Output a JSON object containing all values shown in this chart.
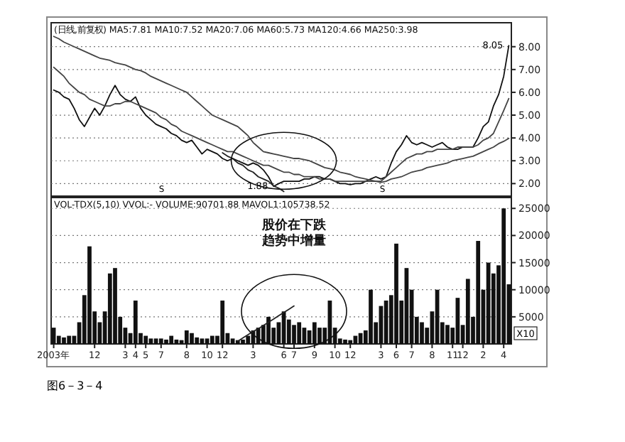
{
  "chart_data": [
    {
      "type": "line",
      "title": "(日线,前复权) MA5:7.81 MA10:7.52 MA20:7.06 MA60:5.73 MA120:4.66 MA250:3.98",
      "ylim": [
        1.45,
        9.05
      ],
      "yticks": [
        {
          "value": 2,
          "label": "2.00"
        },
        {
          "value": 3,
          "label": "3.00"
        },
        {
          "value": 4,
          "label": "4.00"
        },
        {
          "value": 5,
          "label": "5.00"
        },
        {
          "value": 6,
          "label": "6.00"
        },
        {
          "value": 7,
          "label": "7.00"
        },
        {
          "value": 8,
          "label": "8.00"
        }
      ],
      "grid": "y",
      "tick_labels": "y",
      "categories": [
        null,
        null,
        null,
        null,
        null,
        null,
        null,
        null,
        null,
        null,
        null,
        null,
        null,
        null,
        null,
        null,
        null,
        null,
        null,
        null,
        null,
        null,
        null,
        null,
        null,
        null,
        null,
        null,
        null,
        null,
        null,
        null,
        null,
        null,
        null,
        null,
        null,
        null,
        null,
        null,
        null,
        null,
        null,
        null,
        null,
        null,
        null,
        null,
        null,
        null,
        null,
        null,
        null,
        null,
        null,
        null,
        null,
        null,
        null,
        null,
        null,
        null,
        null,
        null,
        null,
        null,
        null,
        null,
        null,
        null,
        null,
        null,
        null,
        null,
        null,
        null,
        null,
        null,
        null,
        null,
        null,
        null,
        null,
        null,
        null,
        null,
        null,
        null,
        null,
        null
      ],
      "series": [
        {
          "color": "#111111",
          "values": [
            6.1,
            6.0,
            5.8,
            5.7,
            5.3,
            4.8,
            4.5,
            4.9,
            5.3,
            5.0,
            5.4,
            5.9,
            6.3,
            5.9,
            5.7,
            5.6,
            5.8,
            5.3,
            5.0,
            4.8,
            4.6,
            4.5,
            4.4,
            4.2,
            4.1,
            3.9,
            3.8,
            3.9,
            3.6,
            3.3,
            3.5,
            3.4,
            3.3,
            3.1,
            3.0,
            3.1,
            3.0,
            2.9,
            2.8,
            2.9,
            2.8,
            2.6,
            2.3,
            1.88,
            2.0,
            2.1,
            2.1,
            2.1,
            2.1,
            2.2,
            2.2,
            2.3,
            2.3,
            2.2,
            2.2,
            2.1,
            2.0,
            2.0,
            1.95,
            2.0,
            2.0,
            2.1,
            2.2,
            2.3,
            2.2,
            2.3,
            2.9,
            3.4,
            3.7,
            4.1,
            3.8,
            3.7,
            3.8,
            3.7,
            3.6,
            3.7,
            3.8,
            3.6,
            3.5,
            3.5,
            3.6,
            3.6,
            3.6,
            4.0,
            4.5,
            4.7,
            5.4,
            5.9,
            6.7,
            8.05
          ]
        },
        {
          "color": "#444444",
          "values": [
            7.1,
            6.9,
            6.7,
            6.4,
            6.2,
            6.0,
            5.9,
            5.7,
            5.6,
            5.5,
            5.4,
            5.4,
            5.5,
            5.5,
            5.6,
            5.6,
            5.5,
            5.4,
            5.3,
            5.2,
            5.1,
            4.9,
            4.8,
            4.6,
            4.5,
            4.3,
            4.2,
            4.1,
            4.0,
            3.9,
            3.8,
            3.7,
            3.6,
            3.5,
            3.4,
            3.4,
            3.3,
            3.2,
            3.1,
            3.0,
            2.9,
            2.8,
            2.8,
            2.7,
            2.6,
            2.5,
            2.5,
            2.4,
            2.4,
            2.3,
            2.3,
            2.3,
            2.2,
            2.2,
            2.2,
            2.1,
            2.1,
            2.1,
            2.1,
            2.1,
            2.1,
            2.1,
            2.1,
            2.1,
            2.1,
            2.3,
            2.5,
            2.7,
            2.9,
            3.1,
            3.2,
            3.3,
            3.3,
            3.4,
            3.4,
            3.5,
            3.5,
            3.5,
            3.5,
            3.6,
            3.6,
            3.6,
            3.6,
            3.7,
            3.9,
            4.0,
            4.2,
            4.7,
            5.2,
            5.73
          ]
        },
        {
          "color": "#444444",
          "values": [
            8.45,
            8.35,
            8.2,
            8.1,
            8.0,
            7.9,
            7.8,
            7.7,
            7.6,
            7.5,
            7.45,
            7.4,
            7.3,
            7.25,
            7.2,
            7.1,
            7.0,
            6.95,
            6.85,
            6.7,
            6.6,
            6.5,
            6.4,
            6.3,
            6.2,
            6.1,
            6.0,
            5.8,
            5.6,
            5.4,
            5.2,
            5.0,
            4.9,
            4.8,
            4.7,
            4.6,
            4.5,
            4.3,
            4.1,
            3.8,
            3.6,
            3.4,
            3.35,
            3.3,
            3.25,
            3.2,
            3.15,
            3.1,
            3.1,
            3.05,
            3.0,
            2.9,
            2.8,
            2.7,
            2.65,
            2.6,
            2.5,
            2.45,
            2.4,
            2.3,
            2.25,
            2.2,
            2.15,
            2.1,
            2.05,
            2.1,
            2.2,
            2.25,
            2.3,
            2.4,
            2.5,
            2.55,
            2.6,
            2.7,
            2.75,
            2.8,
            2.85,
            2.9,
            3.0,
            3.05,
            3.1,
            3.15,
            3.2,
            3.3,
            3.4,
            3.5,
            3.6,
            3.75,
            3.85,
            3.98
          ]
        },
        {
          "color": "#222222",
          "values": [
            null,
            null,
            null,
            null,
            null,
            null,
            null,
            null,
            null,
            null,
            null,
            null,
            null,
            null,
            null,
            null,
            null,
            null,
            null,
            null,
            null,
            null,
            null,
            null,
            null,
            null,
            null,
            null,
            null,
            null,
            null,
            null,
            null,
            3.35,
            3.2,
            3.1,
            2.9,
            2.8,
            2.6,
            2.5,
            2.3,
            2.2,
            2.1,
            1.9,
            1.8,
            1.65,
            null,
            null,
            null,
            null,
            null,
            null,
            null,
            null,
            null,
            null,
            null,
            null,
            null,
            null,
            null,
            null,
            null,
            null,
            null,
            null,
            null,
            null,
            null,
            null,
            null,
            null,
            null,
            null,
            null,
            null,
            null,
            null,
            null,
            null,
            null,
            null,
            null,
            null,
            null,
            null,
            null,
            null,
            null,
            null
          ]
        }
      ],
      "annotations": [
        "1.88",
        "8.05",
        "S",
        "S"
      ]
    },
    {
      "type": "bar",
      "title": "VOL-TDX(5,10) VVOL:- VOLUME:90701.88 MAVOL1:105738.52",
      "ylim": [
        0,
        27000
      ],
      "yticks": [
        5000,
        10000,
        15000,
        20000,
        25000
      ],
      "grid": "y",
      "categories": [
        "2003年",
        null,
        null,
        null,
        null,
        null,
        null,
        null,
        "12",
        null,
        null,
        null,
        null,
        null,
        "3",
        null,
        "4",
        null,
        "5",
        null,
        null,
        "7",
        null,
        null,
        null,
        null,
        "8",
        null,
        null,
        null,
        "10",
        null,
        null,
        "12",
        null,
        null,
        null,
        null,
        null,
        "3",
        null,
        null,
        null,
        null,
        null,
        "6",
        null,
        "7",
        null,
        null,
        null,
        "9",
        null,
        null,
        null,
        "10",
        null,
        null,
        "12",
        null,
        null,
        null,
        null,
        null,
        "3",
        null,
        null,
        "6",
        null,
        null,
        "7",
        null,
        null,
        null,
        "8",
        null,
        null,
        null,
        "11",
        null,
        "12",
        null,
        null,
        null,
        "2",
        null,
        null,
        null,
        "4",
        null
      ],
      "series": [
        {
          "color": "#111111",
          "values": [
            3000,
            1500,
            1200,
            1500,
            1500,
            4000,
            9000,
            18000,
            6000,
            4000,
            6000,
            13000,
            14000,
            5000,
            3000,
            2000,
            8000,
            2000,
            1500,
            1000,
            1000,
            1000,
            800,
            1500,
            800,
            700,
            2500,
            2000,
            1200,
            1000,
            1000,
            1500,
            1500,
            8000,
            2000,
            1000,
            700,
            800,
            1500,
            2500,
            3000,
            3500,
            5000,
            3000,
            4000,
            6000,
            4500,
            3500,
            4000,
            3000,
            2500,
            4000,
            3000,
            3000,
            8000,
            3000,
            1000,
            800,
            700,
            1500,
            2000,
            2500,
            10000,
            4000,
            7000,
            8000,
            9000,
            18500,
            8000,
            14000,
            10000,
            5000,
            4000,
            3000,
            6000,
            10000,
            4000,
            3500,
            3000,
            8500,
            3500,
            12000,
            5000,
            19000,
            10000,
            15000,
            13000,
            14500,
            25000,
            11000
          ]
        },
        {
          "type": "line",
          "color": "#222222",
          "values": [
            null,
            null,
            null,
            null,
            null,
            null,
            null,
            null,
            null,
            null,
            null,
            null,
            null,
            null,
            null,
            null,
            null,
            null,
            null,
            null,
            null,
            null,
            null,
            null,
            null,
            null,
            null,
            null,
            null,
            null,
            null,
            null,
            null,
            null,
            null,
            null,
            500,
            1100,
            1700,
            2300,
            2800,
            3400,
            4000,
            4600,
            5200,
            5800,
            6400,
            7000,
            null,
            null,
            null,
            null,
            null,
            null,
            null,
            null,
            null,
            null,
            null,
            null,
            null,
            null,
            null,
            null,
            null,
            null,
            null,
            null,
            null,
            null,
            null,
            null,
            null,
            null,
            null,
            null,
            null,
            null,
            null,
            null,
            null,
            null,
            null,
            null,
            null,
            null,
            null,
            null,
            null,
            null
          ]
        }
      ],
      "annotations": [
        "股价在下跌趋势中增量",
        "X10",
        "图6－3－4"
      ]
    }
  ]
}
